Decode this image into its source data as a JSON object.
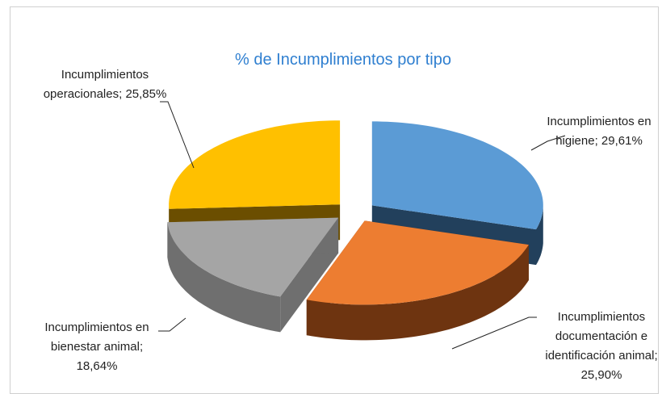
{
  "chart_data": {
    "type": "pie3d",
    "title": "% de Incumplimientos por tipo",
    "categories": [
      "Incumplimientos en higiene",
      "Incumplimientos documentación e identificación animal",
      "Incumplimientos en bienestar animal",
      "Incumplimientos operacionales"
    ],
    "values": [
      29.61,
      25.9,
      18.64,
      25.85
    ],
    "value_labels": [
      "29,61%",
      "25,90%",
      "18,64%",
      "25,85%"
    ],
    "label_separator": ";",
    "colors": [
      "#5b9bd5",
      "#ed7d31",
      "#a5a5a5",
      "#ffc000"
    ],
    "side_colors": [
      "#22405c",
      "#6e3410",
      "#6f6f6f",
      "#6b4e00"
    ],
    "exploded": true
  }
}
